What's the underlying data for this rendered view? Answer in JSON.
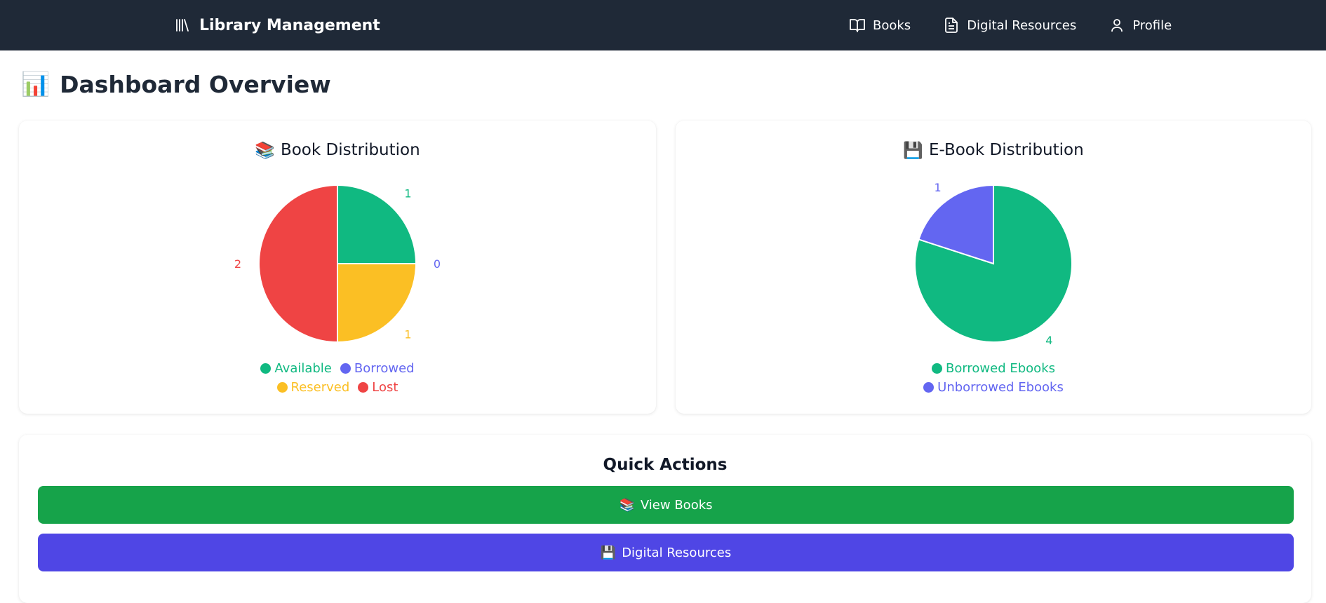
{
  "navbar": {
    "brand": "Library Management",
    "links": [
      {
        "label": "Books",
        "icon": "book-open-icon"
      },
      {
        "label": "Digital Resources",
        "icon": "document-icon"
      },
      {
        "label": "Profile",
        "icon": "user-icon"
      }
    ]
  },
  "page": {
    "title": "Dashboard Overview",
    "title_icon": "📊"
  },
  "cards": {
    "book": {
      "title": "Book Distribution",
      "icon": "📚"
    },
    "ebook": {
      "title": "E-Book Distribution",
      "icon": "💾"
    }
  },
  "chart_data": [
    {
      "type": "pie",
      "title": "Book Distribution",
      "categories": [
        "Available",
        "Borrowed",
        "Reserved",
        "Lost"
      ],
      "values": [
        1,
        0,
        1,
        2
      ],
      "colors": [
        "#10b981",
        "#6366f1",
        "#fbbf24",
        "#ef4444"
      ],
      "legend": "bottom"
    },
    {
      "type": "pie",
      "title": "E-Book Distribution",
      "categories": [
        "Borrowed Ebooks",
        "Unborrowed Ebooks"
      ],
      "values": [
        4,
        1
      ],
      "colors": [
        "#10b981",
        "#6366f1"
      ],
      "legend": "bottom"
    }
  ],
  "quick_actions": {
    "title": "Quick Actions",
    "buttons": [
      {
        "label": "View Books",
        "icon": "📚",
        "color": "#16a34a"
      },
      {
        "label": "Digital Resources",
        "icon": "💾",
        "color": "#4f46e5"
      }
    ]
  }
}
